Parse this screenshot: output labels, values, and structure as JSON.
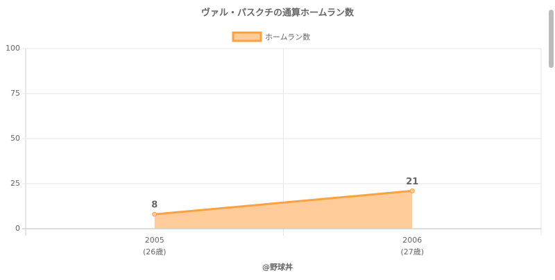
{
  "chart_data": {
    "type": "area",
    "title": "ヴァル・パスクチの通算ホームラン数",
    "categories": [
      "2005",
      "2006"
    ],
    "sublabels": [
      "(26歳)",
      "(27歳)"
    ],
    "series": [
      {
        "name": "ホームラン数",
        "color": "#f9a23f",
        "fill": "#ffcc99",
        "values": [
          8,
          21
        ]
      }
    ],
    "ylim": [
      0,
      100
    ],
    "yticks": [
      0,
      25,
      50,
      75,
      100
    ],
    "grid": true,
    "legend": "top",
    "credit": "@野球丼"
  }
}
